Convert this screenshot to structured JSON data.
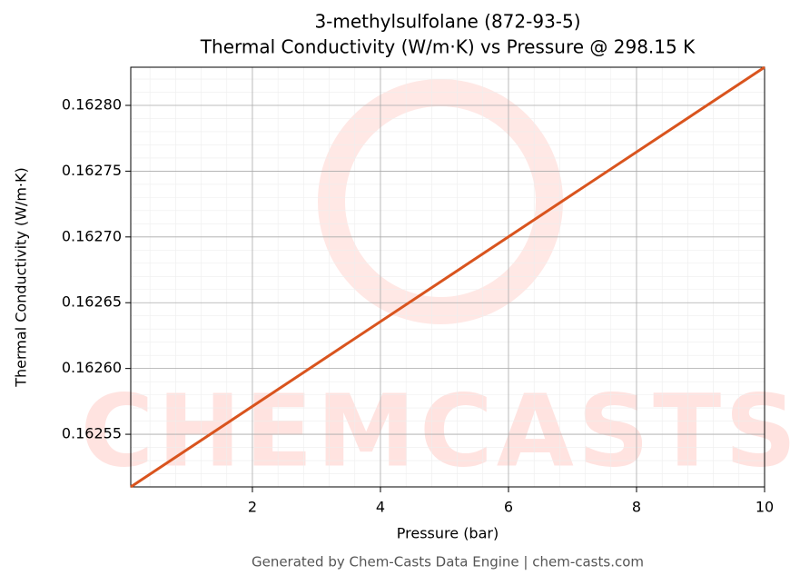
{
  "chart_data": {
    "type": "line",
    "title": "3-methylsulfolane (872-93-5)",
    "subtitle": "Thermal Conductivity (W/m·K) vs Pressure @ 298.15 K",
    "x_label": "Pressure (bar)",
    "y_label": "Thermal Conductivity (W/m·K)",
    "x": [
      0.1,
      10
    ],
    "series": [
      {
        "name": "Thermal Conductivity",
        "color": "#d9541e",
        "values": [
          0.16251,
          0.162829
        ]
      }
    ],
    "xlim": [
      0.1,
      10
    ],
    "ylim": [
      0.16251,
      0.162829
    ],
    "xticks": [
      2,
      4,
      6,
      8,
      10
    ],
    "yticks": [
      {
        "value": 0.16255,
        "label": "0.16255"
      },
      {
        "value": 0.1626,
        "label": "0.16260"
      },
      {
        "value": 0.16265,
        "label": "0.16265"
      },
      {
        "value": 0.1627,
        "label": "0.16270"
      },
      {
        "value": 0.16275,
        "label": "0.16275"
      },
      {
        "value": 0.1628,
        "label": "0.16280"
      }
    ],
    "grid": true,
    "watermark": "CHEMCASTS",
    "footer": "Generated by Chem-Casts Data Engine | chem-casts.com"
  }
}
